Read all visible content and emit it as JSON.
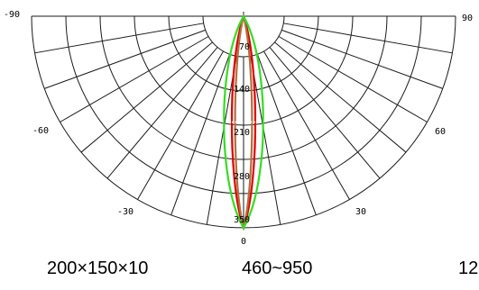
{
  "chart_data": {
    "type": "polar",
    "angle_tick_labels": [
      "-90",
      "90",
      "-60",
      "60",
      "-30",
      "30",
      "0"
    ],
    "radial_tick_labels": [
      "70",
      "140",
      "210",
      "280",
      "350"
    ],
    "radial_ticks": [
      70,
      140,
      210,
      280,
      350
    ],
    "radial_max": 350,
    "angle_range": [
      -90,
      90
    ],
    "angle_step": 10,
    "grid": true,
    "series": [
      {
        "color": "#e00000",
        "half_angle_deg": 3.6,
        "peak": 350
      },
      {
        "color": "#b07040",
        "half_angle_deg": 2.6,
        "peak": 350
      },
      {
        "color": "#33dd22",
        "half_angle_deg": 6.0,
        "peak": 350
      }
    ]
  },
  "captions": [
    "200×150×10",
    "460~950",
    "12"
  ]
}
